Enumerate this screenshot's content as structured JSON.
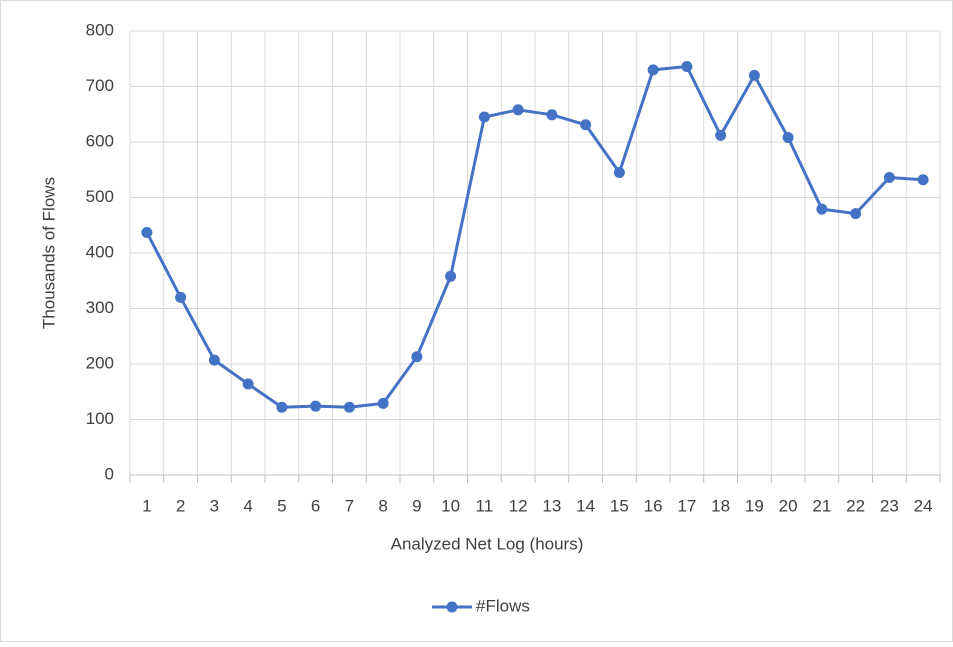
{
  "chart_data": {
    "type": "line",
    "categories": [
      "1",
      "2",
      "3",
      "4",
      "5",
      "6",
      "7",
      "8",
      "9",
      "10",
      "11",
      "12",
      "13",
      "14",
      "15",
      "16",
      "17",
      "18",
      "19",
      "20",
      "21",
      "22",
      "23",
      "24"
    ],
    "series": [
      {
        "name": "#Flows",
        "color": "#4472c4",
        "values": [
          437,
          320,
          207,
          164,
          122,
          124,
          122,
          129,
          213,
          358,
          645,
          658,
          649,
          631,
          545,
          730,
          736,
          612,
          720,
          608,
          479,
          471,
          536,
          532
        ]
      }
    ],
    "x_label": "Analyzed Net Log (hours)",
    "y_label": "Thousands of Flows",
    "ylim": [
      0,
      800
    ],
    "yticks": [
      0,
      100,
      200,
      300,
      400,
      500,
      600,
      700,
      800
    ],
    "grid": true,
    "legend": "bottom"
  }
}
